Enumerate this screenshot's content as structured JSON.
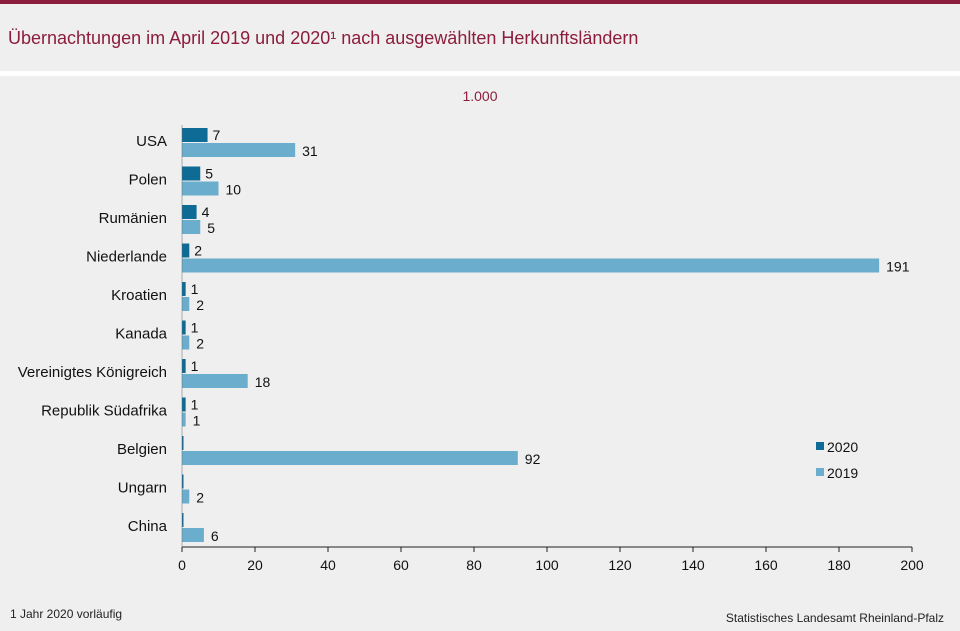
{
  "header": {
    "title": "Übernachtungen im April 2019 und 2020¹ nach ausgewählten Herkunftsländern",
    "unit": "1.000"
  },
  "footer": {
    "footnote": "1 Jahr 2020 vorläufig",
    "source": "Statistisches Landesamt Rheinland-Pfalz"
  },
  "colors": {
    "brand": "#8c1d3c",
    "series_2020": "#0d6b96",
    "series_2019": "#6aadcd"
  },
  "chart_data": {
    "type": "bar",
    "orientation": "horizontal",
    "categories": [
      "USA",
      "Polen",
      "Rumänien",
      "Niederlande",
      "Kroatien",
      "Kanada",
      "Vereinigtes Königreich",
      "Republik Südafrika",
      "Belgien",
      "Ungarn",
      "China"
    ],
    "series": [
      {
        "name": "2020",
        "values": [
          7,
          5,
          4,
          2,
          1,
          1,
          1,
          1,
          0,
          0,
          0
        ],
        "labels": [
          "7",
          "5",
          "4",
          "2",
          "1",
          "1",
          "1",
          "1",
          "",
          "",
          ""
        ]
      },
      {
        "name": "2019",
        "values": [
          31,
          10,
          5,
          191,
          2,
          2,
          18,
          1,
          92,
          2,
          6
        ],
        "labels": [
          "31",
          "10",
          "5",
          "191",
          "2",
          "2",
          "18",
          "1",
          "92",
          "2",
          "6"
        ]
      }
    ],
    "xlim": [
      0,
      200
    ],
    "xticks": [
      "0",
      "20",
      "40",
      "60",
      "80",
      "100",
      "120",
      "140",
      "160",
      "180",
      "200"
    ],
    "grid": false,
    "legend": "bottom-right"
  }
}
